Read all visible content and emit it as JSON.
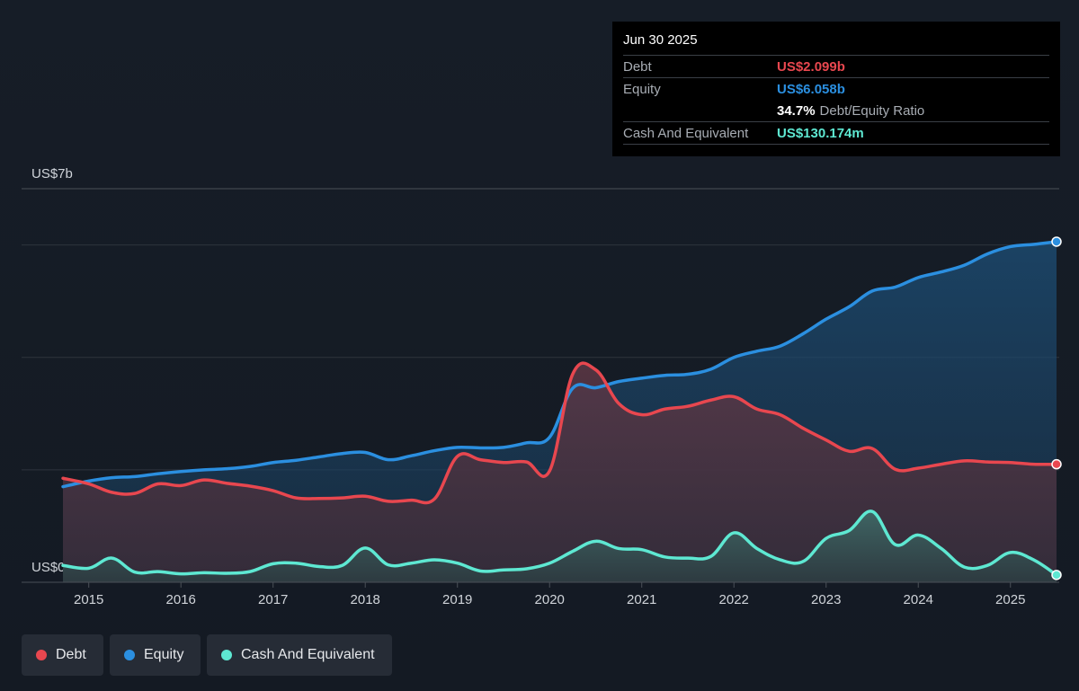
{
  "tooltip": {
    "date": "Jun 30 2025",
    "debt_label": "Debt",
    "debt_value": "US$2.099b",
    "equity_label": "Equity",
    "equity_value": "US$6.058b",
    "ratio_value": "34.7%",
    "ratio_label": "Debt/Equity Ratio",
    "cash_label": "Cash And Equivalent",
    "cash_value": "US$130.174m"
  },
  "legend": [
    {
      "label": "Debt",
      "color": "#e8474f"
    },
    {
      "label": "Equity",
      "color": "#2b8fe0"
    },
    {
      "label": "Cash And Equivalent",
      "color": "#5ee8d2"
    }
  ],
  "colors": {
    "debt": "#e8474f",
    "equity": "#2b8fe0",
    "cash": "#5ee8d2"
  },
  "chart_data": {
    "type": "area",
    "ylabel_top": "US$7b",
    "ylabel_bottom": "US$0",
    "ylim": [
      0,
      7
    ],
    "xlim": [
      2014.72,
      2025.5
    ],
    "x_ticks": [
      2015,
      2016,
      2017,
      2018,
      2019,
      2020,
      2021,
      2022,
      2023,
      2024,
      2025
    ],
    "gridlines": [
      2,
      4,
      6
    ],
    "series": [
      {
        "name": "Debt",
        "x": [
          2014.72,
          2015.0,
          2015.25,
          2015.5,
          2015.75,
          2016.0,
          2016.25,
          2016.5,
          2016.75,
          2017.0,
          2017.25,
          2017.5,
          2017.75,
          2018.0,
          2018.25,
          2018.5,
          2018.75,
          2019.0,
          2019.25,
          2019.5,
          2019.75,
          2020.0,
          2020.25,
          2020.5,
          2020.75,
          2021.0,
          2021.25,
          2021.5,
          2021.75,
          2022.0,
          2022.25,
          2022.5,
          2022.75,
          2023.0,
          2023.25,
          2023.5,
          2023.75,
          2024.0,
          2024.25,
          2024.5,
          2024.75,
          2025.0,
          2025.25,
          2025.5
        ],
        "values": [
          1.85,
          1.75,
          1.6,
          1.58,
          1.75,
          1.72,
          1.82,
          1.76,
          1.71,
          1.63,
          1.5,
          1.49,
          1.5,
          1.53,
          1.44,
          1.46,
          1.48,
          2.24,
          2.18,
          2.13,
          2.14,
          1.98,
          3.7,
          3.78,
          3.18,
          2.98,
          3.08,
          3.13,
          3.24,
          3.3,
          3.08,
          2.98,
          2.74,
          2.53,
          2.33,
          2.38,
          2.01,
          2.03,
          2.1,
          2.16,
          2.14,
          2.13,
          2.1,
          2.099
        ]
      },
      {
        "name": "Equity",
        "x": [
          2014.72,
          2015.0,
          2015.25,
          2015.5,
          2015.75,
          2016.0,
          2016.25,
          2016.5,
          2016.75,
          2017.0,
          2017.25,
          2017.5,
          2017.75,
          2018.0,
          2018.25,
          2018.5,
          2018.75,
          2019.0,
          2019.25,
          2019.5,
          2019.75,
          2020.0,
          2020.25,
          2020.5,
          2020.75,
          2021.0,
          2021.25,
          2021.5,
          2021.75,
          2022.0,
          2022.25,
          2022.5,
          2022.75,
          2023.0,
          2023.25,
          2023.5,
          2023.75,
          2024.0,
          2024.25,
          2024.5,
          2024.75,
          2025.0,
          2025.25,
          2025.5
        ],
        "values": [
          1.7,
          1.8,
          1.86,
          1.88,
          1.93,
          1.97,
          2.0,
          2.02,
          2.06,
          2.13,
          2.17,
          2.23,
          2.29,
          2.31,
          2.18,
          2.25,
          2.34,
          2.4,
          2.39,
          2.4,
          2.48,
          2.58,
          3.45,
          3.46,
          3.57,
          3.63,
          3.68,
          3.7,
          3.79,
          4.0,
          4.11,
          4.2,
          4.42,
          4.68,
          4.9,
          5.18,
          5.25,
          5.42,
          5.52,
          5.64,
          5.84,
          5.97,
          6.01,
          6.058
        ]
      },
      {
        "name": "Cash And Equivalent",
        "x": [
          2014.72,
          2015.0,
          2015.25,
          2015.5,
          2015.75,
          2016.0,
          2016.25,
          2016.5,
          2016.75,
          2017.0,
          2017.25,
          2017.5,
          2017.75,
          2018.0,
          2018.25,
          2018.5,
          2018.75,
          2019.0,
          2019.25,
          2019.5,
          2019.75,
          2020.0,
          2020.25,
          2020.5,
          2020.75,
          2021.0,
          2021.25,
          2021.5,
          2021.75,
          2022.0,
          2022.25,
          2022.5,
          2022.75,
          2023.0,
          2023.25,
          2023.5,
          2023.75,
          2024.0,
          2024.25,
          2024.5,
          2024.75,
          2025.0,
          2025.25,
          2025.5
        ],
        "values": [
          0.3,
          0.25,
          0.43,
          0.18,
          0.19,
          0.15,
          0.17,
          0.16,
          0.19,
          0.33,
          0.34,
          0.28,
          0.3,
          0.61,
          0.31,
          0.34,
          0.4,
          0.34,
          0.2,
          0.22,
          0.24,
          0.34,
          0.55,
          0.73,
          0.6,
          0.58,
          0.45,
          0.43,
          0.46,
          0.88,
          0.6,
          0.4,
          0.37,
          0.78,
          0.92,
          1.26,
          0.67,
          0.84,
          0.6,
          0.27,
          0.3,
          0.53,
          0.4,
          0.13
        ]
      }
    ]
  }
}
